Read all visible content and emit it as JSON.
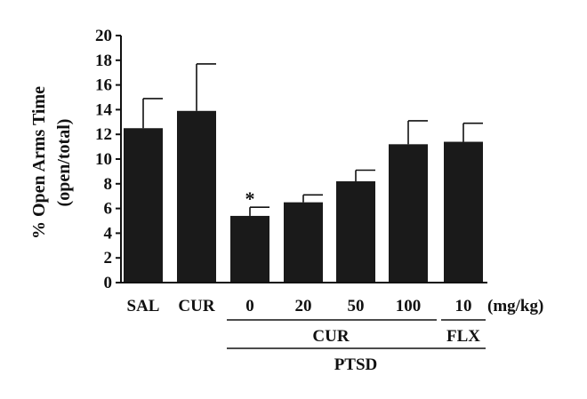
{
  "chart_data": {
    "type": "bar",
    "ylabel": "% Open Arms Time",
    "ylabel2": "(open/total)",
    "ylim": [
      0,
      20
    ],
    "yticks": [
      "0",
      "2",
      "4",
      "6",
      "8",
      "10",
      "12",
      "14",
      "16",
      "18",
      "20"
    ],
    "categories": [
      "SAL",
      "CUR",
      "0",
      "20",
      "50",
      "100",
      "10"
    ],
    "values": [
      12.5,
      13.9,
      5.4,
      6.5,
      8.2,
      11.2,
      11.4
    ],
    "errors": [
      2.4,
      3.8,
      0.7,
      0.6,
      0.9,
      1.9,
      1.5
    ],
    "significance": [
      "",
      "",
      "*",
      "",
      "",
      "",
      ""
    ],
    "bar_color": "#1a1a1a",
    "unit_label": "(mg/kg)",
    "groups": {
      "cur_label": "CUR",
      "flx_label": "FLX",
      "ptsd_label": "PTSD"
    },
    "grid": false,
    "legend": "none"
  }
}
